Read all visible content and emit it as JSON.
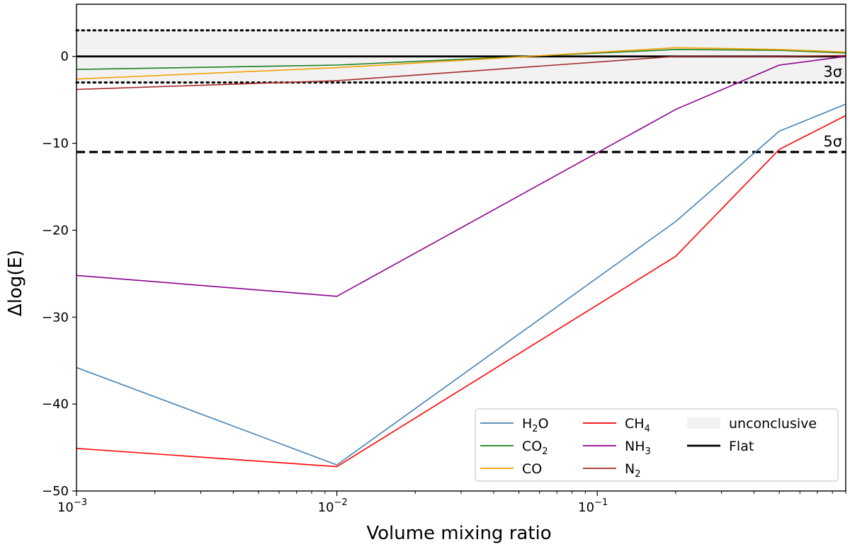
{
  "chart_data": {
    "type": "line",
    "xscale": "log",
    "xlabel": "Volume mixing ratio",
    "ylabel": "Δlog(E)",
    "xlim": [
      0.001,
      0.9
    ],
    "ylim": [
      -50,
      6
    ],
    "x_major_ticks": [
      {
        "value": 0.001,
        "base": "10",
        "exp": "−3"
      },
      {
        "value": 0.01,
        "base": "10",
        "exp": "−2"
      },
      {
        "value": 0.1,
        "base": "10",
        "exp": "−1"
      }
    ],
    "y_ticks": [
      {
        "value": 0,
        "label": "0"
      },
      {
        "value": -10,
        "label": "−10"
      },
      {
        "value": -20,
        "label": "−20"
      },
      {
        "value": -30,
        "label": "−30"
      },
      {
        "value": -40,
        "label": "−40"
      },
      {
        "value": -50,
        "label": "−50"
      }
    ],
    "x": [
      0.001,
      0.01,
      0.2,
      0.5,
      0.9
    ],
    "series": [
      {
        "key": "h2o",
        "name": "H2O",
        "base": "H",
        "sub": "2",
        "rest": "O",
        "color": "#4682b4",
        "values": [
          -35.8,
          -47.0,
          -19.0,
          -8.6,
          -5.5
        ]
      },
      {
        "key": "co2",
        "name": "CO2",
        "base": "CO",
        "sub": "2",
        "rest": "",
        "color": "#1a7f1a",
        "values": [
          -1.5,
          -1.0,
          0.8,
          0.7,
          0.4
        ]
      },
      {
        "key": "co",
        "name": "CO",
        "base": "CO",
        "sub": "",
        "rest": "",
        "color": "#f5a000",
        "values": [
          -2.6,
          -1.3,
          1.0,
          0.8,
          0.5
        ]
      },
      {
        "key": "ch4",
        "name": "CH4",
        "base": "CH",
        "sub": "4",
        "rest": "",
        "color": "#ff0000",
        "values": [
          -45.1,
          -47.2,
          -23.0,
          -10.7,
          -6.8
        ]
      },
      {
        "key": "nh3",
        "name": "NH3",
        "base": "NH",
        "sub": "3",
        "rest": "",
        "color": "#8b008b",
        "values": [
          -25.2,
          -27.6,
          -6.1,
          -1.0,
          0.0
        ]
      },
      {
        "key": "n2",
        "name": "N2",
        "base": "N",
        "sub": "2",
        "rest": "",
        "color": "#a52a2a",
        "values": [
          -3.8,
          -2.8,
          0.0,
          0.0,
          0.1
        ]
      }
    ],
    "flat": {
      "name": "Flat",
      "value": 0,
      "color": "#000000"
    },
    "unconclusive_band": {
      "name": "unconclusive",
      "range": [
        -3,
        3
      ],
      "color": "#f2f2f2"
    },
    "thresholds": [
      {
        "key": "upper3",
        "value": 3,
        "style": "dotted",
        "label": ""
      },
      {
        "key": "lower3",
        "value": -3,
        "style": "dotted",
        "label": "3σ"
      },
      {
        "key": "five",
        "value": -11,
        "style": "dashed",
        "label": "5σ"
      }
    ],
    "legend_location": "lower-right"
  }
}
